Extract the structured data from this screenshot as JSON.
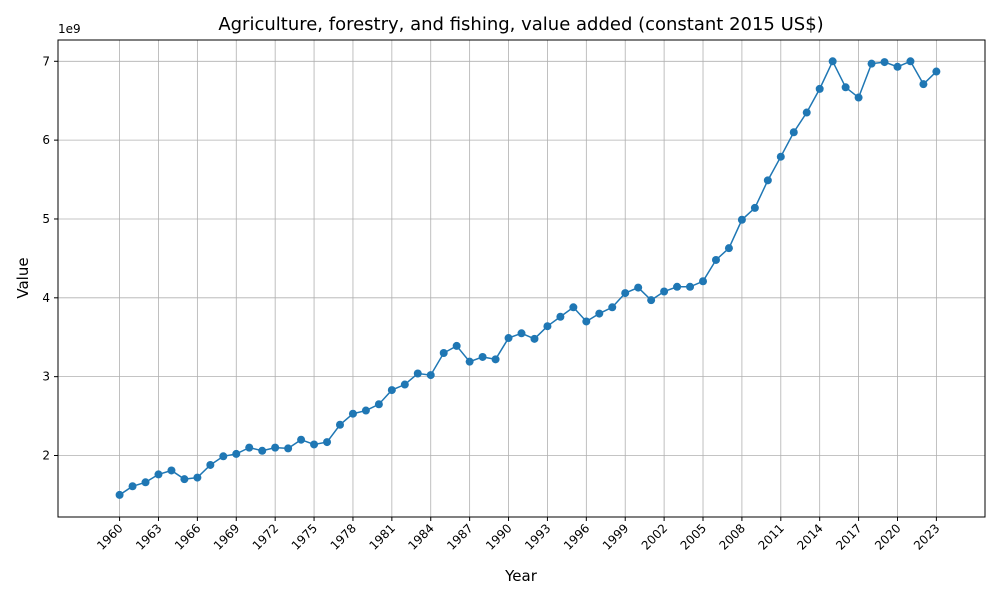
{
  "chart_data": {
    "type": "line",
    "title": "Agriculture, forestry, and fishing, value added (constant 2015 US$)",
    "xlabel": "Year",
    "ylabel": "Value",
    "y_offset_label": "1e9",
    "xlim": [
      1955.25,
      2026.75
    ],
    "ylim": [
      1.22,
      7.27
    ],
    "y_scale_factor": 1000000000,
    "yticks": [
      2,
      3,
      4,
      5,
      6,
      7
    ],
    "xticks": [
      1960,
      1963,
      1966,
      1969,
      1972,
      1975,
      1978,
      1981,
      1984,
      1987,
      1990,
      1993,
      1996,
      1999,
      2002,
      2005,
      2008,
      2011,
      2014,
      2017,
      2020,
      2023
    ],
    "grid": true,
    "marker": "circle",
    "color": "#1f77b4",
    "x": [
      1960,
      1961,
      1962,
      1963,
      1964,
      1965,
      1966,
      1967,
      1968,
      1969,
      1970,
      1971,
      1972,
      1973,
      1974,
      1975,
      1976,
      1977,
      1978,
      1979,
      1980,
      1981,
      1982,
      1983,
      1984,
      1985,
      1986,
      1987,
      1988,
      1989,
      1990,
      1991,
      1992,
      1993,
      1994,
      1995,
      1996,
      1997,
      1998,
      1999,
      2000,
      2001,
      2002,
      2003,
      2004,
      2005,
      2006,
      2007,
      2008,
      2009,
      2010,
      2011,
      2012,
      2013,
      2014,
      2015,
      2016,
      2017,
      2018,
      2019,
      2020,
      2021,
      2022,
      2023
    ],
    "series": [
      {
        "values": [
          1.5,
          1.61,
          1.66,
          1.76,
          1.81,
          1.7,
          1.72,
          1.88,
          1.99,
          2.02,
          2.1,
          2.06,
          2.1,
          2.09,
          2.2,
          2.14,
          2.17,
          2.39,
          2.53,
          2.57,
          2.65,
          2.83,
          2.9,
          3.04,
          3.02,
          3.3,
          3.39,
          3.19,
          3.25,
          3.22,
          3.49,
          3.55,
          3.48,
          3.64,
          3.76,
          3.88,
          3.7,
          3.8,
          3.88,
          4.06,
          4.13,
          3.97,
          4.08,
          4.14,
          4.14,
          4.21,
          4.48,
          4.63,
          4.99,
          5.14,
          5.49,
          5.79,
          6.1,
          6.35,
          6.65,
          7.0,
          6.67,
          6.54,
          6.97,
          6.99,
          6.93,
          7.0,
          6.71,
          6.87
        ]
      }
    ]
  }
}
